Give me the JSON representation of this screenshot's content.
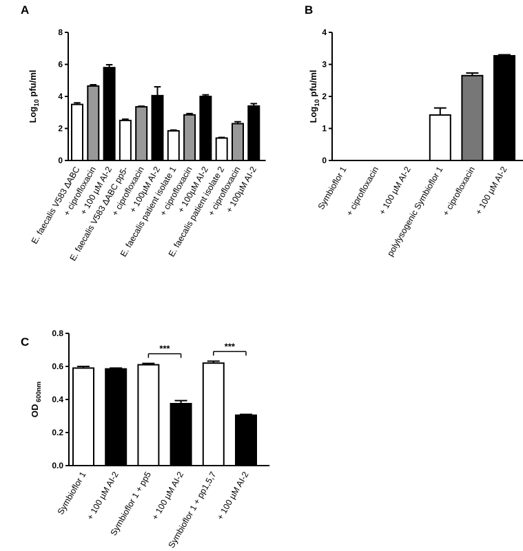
{
  "chart_data": [
    {
      "panel": "A",
      "type": "bar",
      "ylabel": {
        "main": "Log",
        "sub": "10",
        "tail": " pfu/ml"
      },
      "ylim": [
        0,
        8
      ],
      "yticks": [
        "0",
        "2",
        "4",
        "6",
        "8"
      ],
      "categories": [
        "E. faecalis V583 ∆ABC",
        "+ ciprofloxacin",
        "+ 100 µM AI-2",
        "E. faecalis V583 ∆ABC pp5-",
        "+ ciprofloxacin",
        "+ 100µM AI-2",
        "E. faecalis patient isolate 1",
        "+ ciprofloxacin",
        "+ 100µM AI-2",
        "E. faecalis patient isolate 2",
        "+ ciprofloxacin",
        "+ 100µM AI-2"
      ],
      "values": [
        3.5,
        4.65,
        5.8,
        2.5,
        3.35,
        4.05,
        1.85,
        2.85,
        4.0,
        1.4,
        2.3,
        3.4
      ],
      "errors": [
        0.1,
        0.08,
        0.18,
        0.08,
        0.04,
        0.55,
        0.05,
        0.08,
        0.1,
        0.04,
        0.12,
        0.15
      ],
      "fills": [
        "#ffffff",
        "#999999",
        "#000000",
        "#ffffff",
        "#999999",
        "#000000",
        "#ffffff",
        "#999999",
        "#000000",
        "#ffffff",
        "#999999",
        "#000000"
      ],
      "grid": false
    },
    {
      "panel": "B",
      "type": "bar",
      "ylabel": {
        "main": "Log",
        "sub": "10",
        "tail": " pfu/ml"
      },
      "ylim": [
        0,
        4
      ],
      "yticks": [
        "0",
        "1",
        "2",
        "3",
        "4"
      ],
      "categories": [
        "Symbioflor 1",
        "+ ciprofloxacin",
        "+ 100 µM AI-2",
        "polylysogenic Symbioflor 1",
        "+ ciprofloxacin",
        "+ 100 µM AI-2"
      ],
      "values": [
        0,
        0,
        0,
        1.42,
        2.65,
        3.27
      ],
      "errors": [
        0,
        0,
        0,
        0.22,
        0.08,
        0.03
      ],
      "fills": [
        "#ffffff",
        "#777777",
        "#000000",
        "#ffffff",
        "#777777",
        "#000000"
      ],
      "grid": false
    },
    {
      "panel": "C",
      "type": "bar",
      "ylabel": {
        "main": "OD",
        "sub": " 600nm",
        "tail": ""
      },
      "ylim": [
        0,
        0.8
      ],
      "yticks": [
        "0.0",
        "0.2",
        "0.4",
        "0.6",
        "0.8"
      ],
      "categories": [
        "Symbioflor 1",
        "+ 100 µM AI-2",
        "Symbioflor 1 + pp5",
        "+ 100 µM AI-2",
        "Symbioflor 1 + pp1,5,7",
        "+ 100 µM AI-2"
      ],
      "values": [
        0.59,
        0.585,
        0.61,
        0.375,
        0.62,
        0.305
      ],
      "errors": [
        0.01,
        0.005,
        0.008,
        0.018,
        0.012,
        0.005
      ],
      "fills": [
        "#ffffff",
        "#000000",
        "#ffffff",
        "#000000",
        "#ffffff",
        "#000000"
      ],
      "significance": [
        {
          "from": 2,
          "to": 3,
          "label": "***"
        },
        {
          "from": 4,
          "to": 5,
          "label": "***"
        }
      ],
      "grid": false
    }
  ]
}
